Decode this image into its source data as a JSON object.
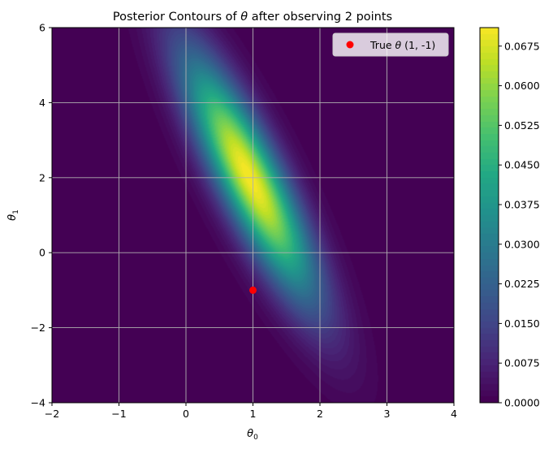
{
  "chart_data": {
    "type": "heatmap",
    "subtype": "filled-contour",
    "title_pre": "Posterior Contours of ",
    "title_sym": "θ",
    "title_post": " after observing 2 points",
    "xlabel_sym": "θ",
    "xlabel_sub": "0",
    "ylabel_sym": "θ",
    "ylabel_sub": "1",
    "xlim": [
      -2,
      4
    ],
    "ylim": [
      -4,
      6
    ],
    "xticks": [
      -2,
      -1,
      0,
      1,
      2,
      3,
      4
    ],
    "yticks": [
      -4,
      -2,
      0,
      2,
      4,
      6
    ],
    "xtick_labels": [
      "−2",
      "−1",
      "0",
      "1",
      "2",
      "3",
      "4"
    ],
    "ytick_labels": [
      "−4",
      "−2",
      "0",
      "2",
      "4",
      "6"
    ],
    "grid": true,
    "colormap": "viridis",
    "density": {
      "mean": [
        0.95,
        2.0
      ],
      "sd": [
        0.67,
        2.2
      ],
      "correlation": -0.85,
      "peak": 0.071
    },
    "colorbar": {
      "min": 0.0,
      "max": 0.071,
      "ticks": [
        0.0,
        0.0075,
        0.015,
        0.0225,
        0.03,
        0.0375,
        0.045,
        0.0525,
        0.06,
        0.0675
      ],
      "tick_labels": [
        "0.0000",
        "0.0075",
        "0.0150",
        "0.0225",
        "0.0300",
        "0.0375",
        "0.0450",
        "0.0525",
        "0.0600",
        "0.0675"
      ]
    },
    "series": [
      {
        "name_pre": "True ",
        "name_sym": "θ",
        "name_post": " (1, -1)",
        "type": "scatter",
        "x": [
          1
        ],
        "y": [
          -1
        ],
        "color": "#ff0000"
      }
    ],
    "legend_position": "upper right"
  }
}
